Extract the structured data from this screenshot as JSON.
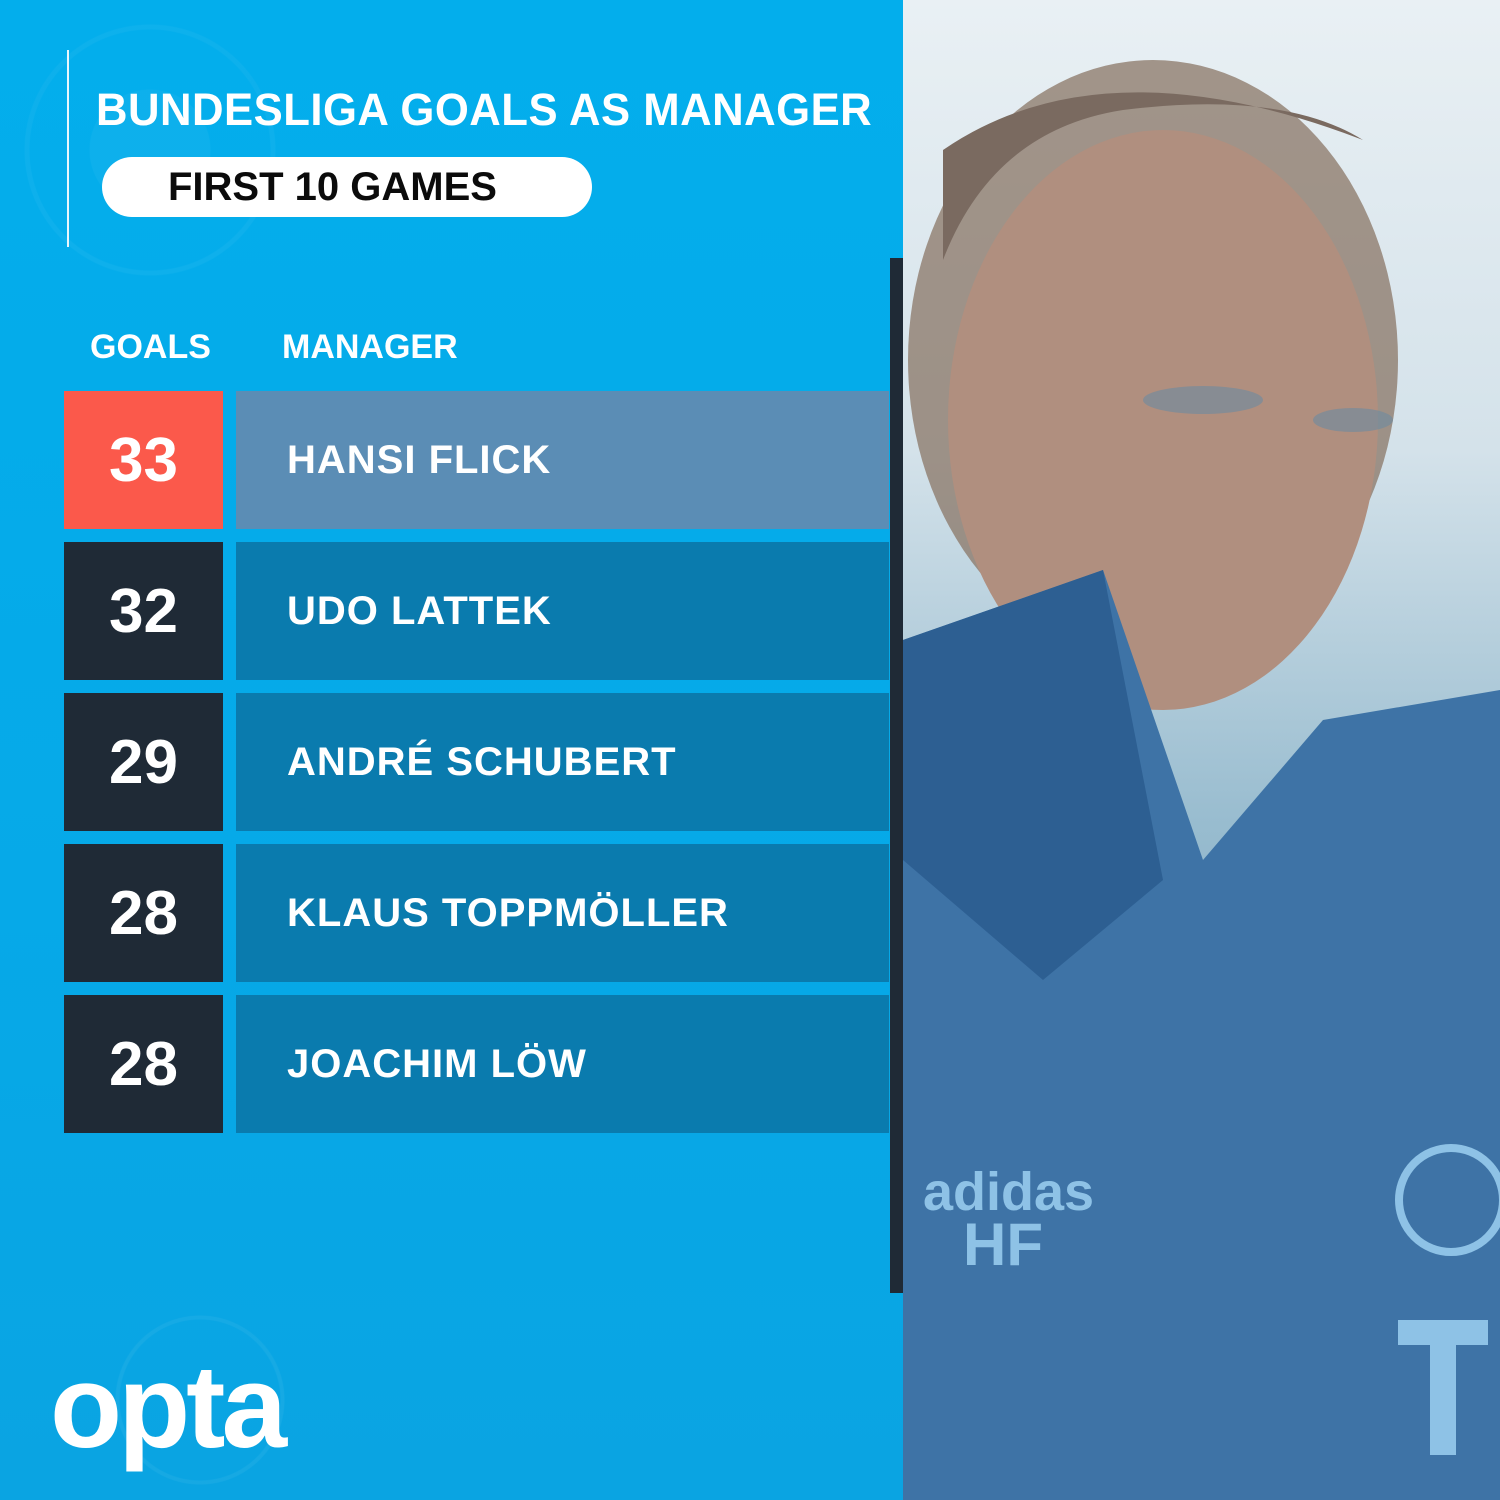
{
  "header": {
    "title": "BUNDESLIGA GOALS AS MANAGER",
    "subtitle": "FIRST 10 GAMES"
  },
  "chart_data": {
    "type": "table",
    "title": "BUNDESLIGA GOALS AS MANAGER",
    "subtitle": "FIRST 10 GAMES",
    "columns": [
      "GOALS",
      "MANAGER"
    ],
    "rows": [
      {
        "goals": "33",
        "manager": "HANSI FLICK",
        "highlight": true
      },
      {
        "goals": "32",
        "manager": "UDO LATTEK",
        "highlight": false
      },
      {
        "goals": "29",
        "manager": "ANDRÉ SCHUBERT",
        "highlight": false
      },
      {
        "goals": "28",
        "manager": "KLAUS TOPPMÖLLER",
        "highlight": false
      },
      {
        "goals": "28",
        "manager": "JOACHIM LÖW",
        "highlight": false
      }
    ]
  },
  "colors": {
    "background": "#02aeed",
    "highlight_goals": "#fb594b",
    "highlight_name": "#5b8db5",
    "goals_box": "#1f2a36",
    "name_box": "#0a7bae"
  },
  "logo": {
    "text": "opta"
  },
  "photo": {
    "subject": "manager-portrait",
    "jacket_text": "HF"
  }
}
